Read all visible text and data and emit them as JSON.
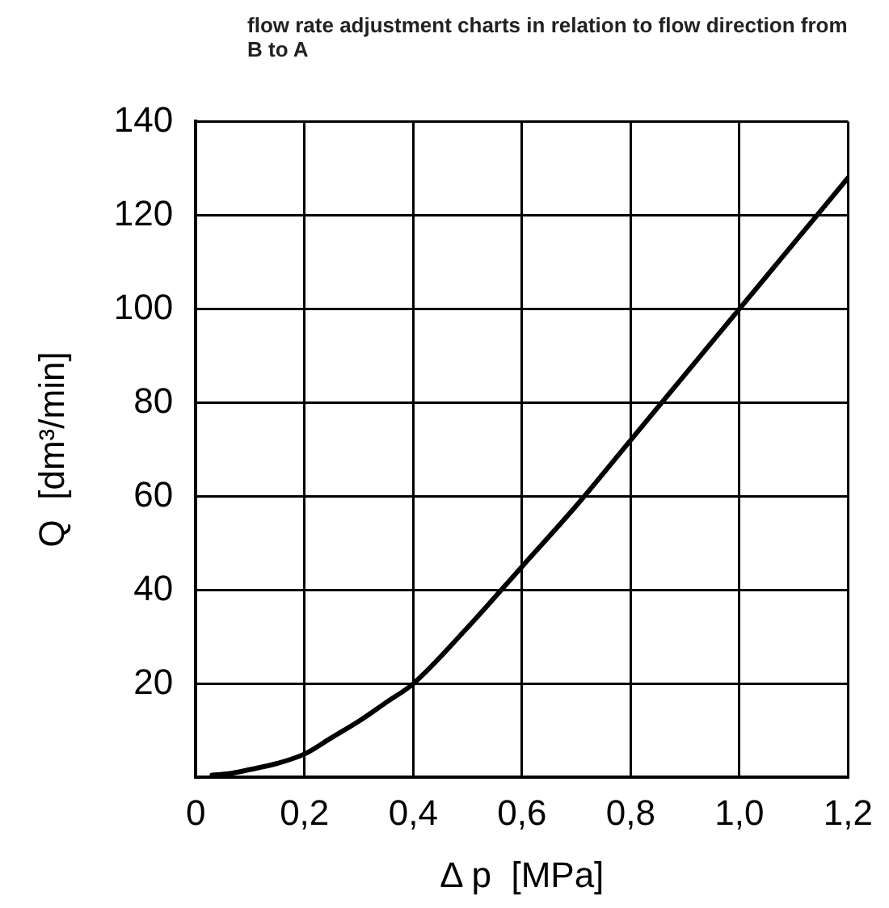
{
  "chart_data": {
    "type": "line",
    "title": "flow rate adjustment charts in relation to flow direction from B to A",
    "xlabel": "Δ p  [MPa]",
    "ylabel": "Q  [dm³/min]",
    "x": [
      0.03,
      0.06,
      0.1,
      0.15,
      0.2,
      0.25,
      0.3,
      0.35,
      0.4,
      0.5,
      0.6,
      0.7,
      0.8,
      0.9,
      1.0,
      1.1,
      1.2
    ],
    "series": [
      {
        "color": "#000000",
        "values": [
          0.5,
          0.8,
          1.7,
          3,
          5,
          8.5,
          12,
          16,
          20,
          32,
          45,
          58,
          72,
          86,
          100,
          114,
          128
        ]
      }
    ],
    "xlim": [
      0,
      1.2
    ],
    "xticks": [
      {
        "value": 0,
        "label": "0"
      },
      {
        "value": 0.2,
        "label": "0,2"
      },
      {
        "value": 0.4,
        "label": "0,4"
      },
      {
        "value": 0.6,
        "label": "0,6"
      },
      {
        "value": 0.8,
        "label": "0,8"
      },
      {
        "value": 1.0,
        "label": "1,0"
      },
      {
        "value": 1.2,
        "label": "1,2"
      }
    ],
    "ylim": [
      0,
      140
    ],
    "yticks": [
      {
        "value": 0,
        "label": null
      },
      20,
      40,
      60,
      80,
      100,
      120,
      140
    ],
    "grid": true,
    "legend": false,
    "marker": "none",
    "line_style": "solid"
  }
}
